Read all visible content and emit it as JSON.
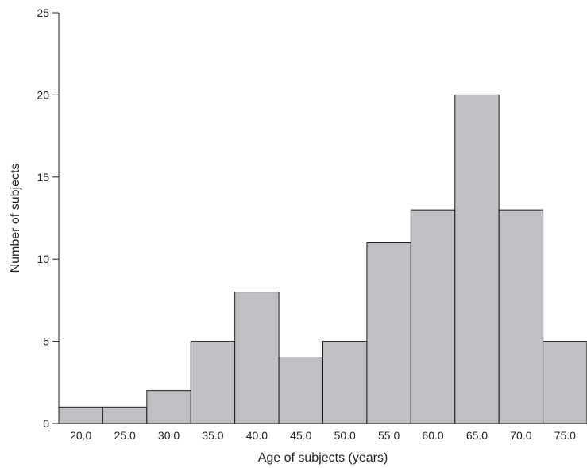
{
  "chart_data": {
    "type": "bar",
    "categories": [
      "20.0",
      "25.0",
      "30.0",
      "35.0",
      "40.0",
      "45.0",
      "50.0",
      "55.0",
      "60.0",
      "65.0",
      "70.0",
      "75.0"
    ],
    "values": [
      1,
      1,
      2,
      5,
      8,
      4,
      5,
      11,
      13,
      20,
      13,
      5
    ],
    "xlabel": "Age of subjects (years)",
    "ylabel": "Number of subjects",
    "ylim": [
      0,
      25
    ],
    "yticks": [
      0,
      5,
      10,
      15,
      20,
      25
    ],
    "grid": false,
    "colors": {
      "bar_fill": "#c0c0c4",
      "bar_edge": "#1a1a1a",
      "axis": "#222222"
    }
  }
}
